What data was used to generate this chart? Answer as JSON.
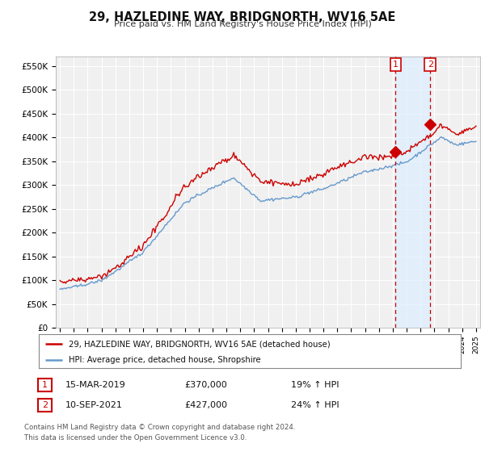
{
  "title": "29, HAZLEDINE WAY, BRIDGNORTH, WV16 5AE",
  "subtitle": "Price paid vs. HM Land Registry's House Price Index (HPI)",
  "ylabel_ticks": [
    "£0",
    "£50K",
    "£100K",
    "£150K",
    "£200K",
    "£250K",
    "£300K",
    "£350K",
    "£400K",
    "£450K",
    "£500K",
    "£550K"
  ],
  "ytick_values": [
    0,
    50000,
    100000,
    150000,
    200000,
    250000,
    300000,
    350000,
    400000,
    450000,
    500000,
    550000
  ],
  "ylim": [
    0,
    570000
  ],
  "xlim_start": 1994.7,
  "xlim_end": 2025.3,
  "hpi_line_color": "#6699cc",
  "price_line_color": "#cc0000",
  "marker1_x": 2019.2,
  "marker1_y": 370000,
  "marker2_x": 2021.7,
  "marker2_y": 427000,
  "shade_color": "#ddeeff",
  "vline_color": "#cc0000",
  "legend1_label": "29, HAZLEDINE WAY, BRIDGNORTH, WV16 5AE (detached house)",
  "legend2_label": "HPI: Average price, detached house, Shropshire",
  "table_rows": [
    {
      "num": "1",
      "date": "15-MAR-2019",
      "price": "£370,000",
      "hpi": "19% ↑ HPI"
    },
    {
      "num": "2",
      "date": "10-SEP-2021",
      "price": "£427,000",
      "hpi": "24% ↑ HPI"
    }
  ],
  "footnote": "Contains HM Land Registry data © Crown copyright and database right 2024.\nThis data is licensed under the Open Government Licence v3.0.",
  "bg_color": "#ffffff",
  "plot_bg_color": "#f0f0f0",
  "grid_color": "#ffffff",
  "marker_box_color": "#cc0000"
}
